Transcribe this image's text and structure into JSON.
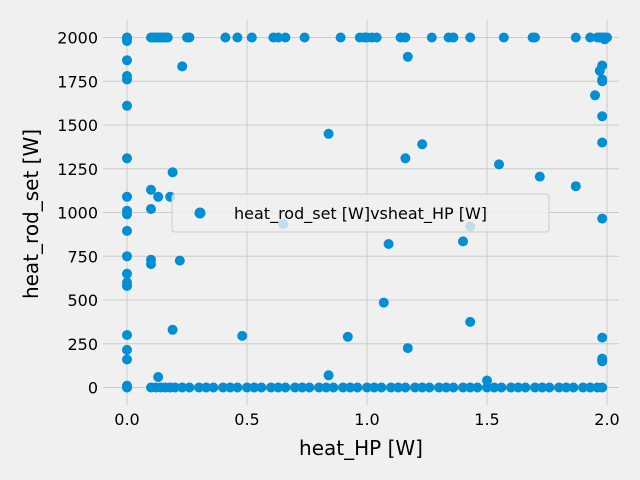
{
  "chart_data": {
    "type": "scatter",
    "xlabel": "heat_HP [W]",
    "ylabel": "heat_rod_set [W]",
    "xlim": [
      -0.1,
      2.05
    ],
    "ylim": [
      -100,
      2100
    ],
    "xticks": [
      0.0,
      0.5,
      1.0,
      1.5,
      2.0
    ],
    "xtick_labels": [
      "0.0",
      "0.5",
      "1.0",
      "1.5",
      "2.0"
    ],
    "yticks": [
      0,
      250,
      500,
      750,
      1000,
      1250,
      1500,
      1750,
      2000
    ],
    "ytick_labels": [
      "0",
      "250",
      "500",
      "750",
      "1000",
      "1250",
      "1500",
      "1750",
      "2000"
    ],
    "grid": true,
    "legend_position": "center",
    "colors": {
      "series": "#008fd5",
      "background": "#f0f0f0",
      "grid": "#cbcbcb"
    },
    "series": [
      {
        "name": "heat_rod_set [W]vsheat_HP [W]",
        "points": [
          [
            0,
            0
          ],
          [
            0,
            5
          ],
          [
            0,
            10
          ],
          [
            0,
            160
          ],
          [
            0,
            215
          ],
          [
            0,
            300
          ],
          [
            0,
            580
          ],
          [
            0,
            600
          ],
          [
            0,
            650
          ],
          [
            0,
            750
          ],
          [
            0,
            895
          ],
          [
            0,
            990
          ],
          [
            0,
            1010
          ],
          [
            0,
            1090
          ],
          [
            0,
            1310
          ],
          [
            0,
            1610
          ],
          [
            0,
            1760
          ],
          [
            0,
            1780
          ],
          [
            0,
            1870
          ],
          [
            0,
            1980
          ],
          [
            0,
            1995
          ],
          [
            0,
            2000
          ],
          [
            0.1,
            0
          ],
          [
            0.12,
            0
          ],
          [
            0.14,
            0
          ],
          [
            0.16,
            0
          ],
          [
            0.18,
            0
          ],
          [
            0.2,
            0
          ],
          [
            0.23,
            0
          ],
          [
            0.26,
            0
          ],
          [
            0.3,
            0
          ],
          [
            0.33,
            0
          ],
          [
            0.36,
            0
          ],
          [
            0.4,
            0
          ],
          [
            0.43,
            0
          ],
          [
            0.46,
            0
          ],
          [
            0.5,
            0
          ],
          [
            0.53,
            0
          ],
          [
            0.56,
            0
          ],
          [
            0.6,
            0
          ],
          [
            0.63,
            0
          ],
          [
            0.66,
            0
          ],
          [
            0.7,
            0
          ],
          [
            0.73,
            0
          ],
          [
            0.76,
            0
          ],
          [
            0.8,
            0
          ],
          [
            0.83,
            0
          ],
          [
            0.86,
            0
          ],
          [
            0.9,
            0
          ],
          [
            0.93,
            0
          ],
          [
            0.96,
            0
          ],
          [
            1.0,
            0
          ],
          [
            1.03,
            0
          ],
          [
            1.06,
            0
          ],
          [
            1.1,
            0
          ],
          [
            1.13,
            0
          ],
          [
            1.16,
            0
          ],
          [
            1.2,
            0
          ],
          [
            1.23,
            0
          ],
          [
            1.26,
            0
          ],
          [
            1.3,
            0
          ],
          [
            1.33,
            0
          ],
          [
            1.36,
            0
          ],
          [
            1.4,
            0
          ],
          [
            1.43,
            0
          ],
          [
            1.46,
            0
          ],
          [
            1.5,
            0
          ],
          [
            1.53,
            0
          ],
          [
            1.56,
            0
          ],
          [
            1.6,
            0
          ],
          [
            1.63,
            0
          ],
          [
            1.66,
            0
          ],
          [
            1.7,
            0
          ],
          [
            1.73,
            0
          ],
          [
            1.76,
            0
          ],
          [
            1.8,
            0
          ],
          [
            1.83,
            0
          ],
          [
            1.86,
            0
          ],
          [
            1.9,
            0
          ],
          [
            1.93,
            0
          ],
          [
            1.96,
            0
          ],
          [
            1.98,
            0
          ],
          [
            0.13,
            60
          ],
          [
            0.84,
            70
          ],
          [
            1.5,
            40
          ],
          [
            1.98,
            150
          ],
          [
            1.98,
            165
          ],
          [
            1.98,
            285
          ],
          [
            0.19,
            330
          ],
          [
            0.48,
            295
          ],
          [
            0.92,
            290
          ],
          [
            1.17,
            225
          ],
          [
            1.43,
            375
          ],
          [
            1.07,
            485
          ],
          [
            0.1,
            705
          ],
          [
            0.1,
            730
          ],
          [
            0.22,
            725
          ],
          [
            0.65,
            935
          ],
          [
            1.09,
            820
          ],
          [
            1.4,
            835
          ],
          [
            1.43,
            920
          ],
          [
            1.98,
            965
          ],
          [
            0.1,
            1020
          ],
          [
            0.1,
            1130
          ],
          [
            0.13,
            1090
          ],
          [
            0.18,
            1090
          ],
          [
            0.19,
            1230
          ],
          [
            1.16,
            1310
          ],
          [
            1.23,
            1390
          ],
          [
            1.55,
            1275
          ],
          [
            1.72,
            1205
          ],
          [
            1.87,
            1150
          ],
          [
            1.98,
            1400
          ],
          [
            1.98,
            1550
          ],
          [
            0.84,
            1450
          ],
          [
            0.23,
            1835
          ],
          [
            1.17,
            1890
          ],
          [
            1.95,
            1670
          ],
          [
            1.97,
            1810
          ],
          [
            1.98,
            1840
          ],
          [
            1.98,
            1750
          ],
          [
            1.98,
            1760
          ],
          [
            0.1,
            2000
          ],
          [
            0.11,
            2000
          ],
          [
            0.12,
            2000
          ],
          [
            0.13,
            2000
          ],
          [
            0.14,
            2000
          ],
          [
            0.15,
            2000
          ],
          [
            0.16,
            2000
          ],
          [
            0.17,
            2000
          ],
          [
            0.25,
            2000
          ],
          [
            0.26,
            2000
          ],
          [
            0.41,
            2000
          ],
          [
            0.46,
            2000
          ],
          [
            0.52,
            2000
          ],
          [
            0.61,
            2000
          ],
          [
            0.63,
            2000
          ],
          [
            0.66,
            2000
          ],
          [
            0.74,
            2000
          ],
          [
            0.89,
            2000
          ],
          [
            0.97,
            2000
          ],
          [
            0.99,
            2000
          ],
          [
            1.0,
            2000
          ],
          [
            1.02,
            2000
          ],
          [
            1.04,
            2000
          ],
          [
            1.14,
            2000
          ],
          [
            1.16,
            2000
          ],
          [
            1.27,
            2000
          ],
          [
            1.34,
            2000
          ],
          [
            1.36,
            2000
          ],
          [
            1.43,
            2000
          ],
          [
            1.57,
            2000
          ],
          [
            1.69,
            2000
          ],
          [
            1.7,
            2000
          ],
          [
            1.87,
            2000
          ],
          [
            1.93,
            2000
          ],
          [
            1.96,
            2000
          ],
          [
            1.97,
            2000
          ],
          [
            1.98,
            2000
          ],
          [
            1.99,
            2000
          ],
          [
            2.0,
            2000
          ],
          [
            1.99,
            1990
          ]
        ]
      }
    ]
  }
}
